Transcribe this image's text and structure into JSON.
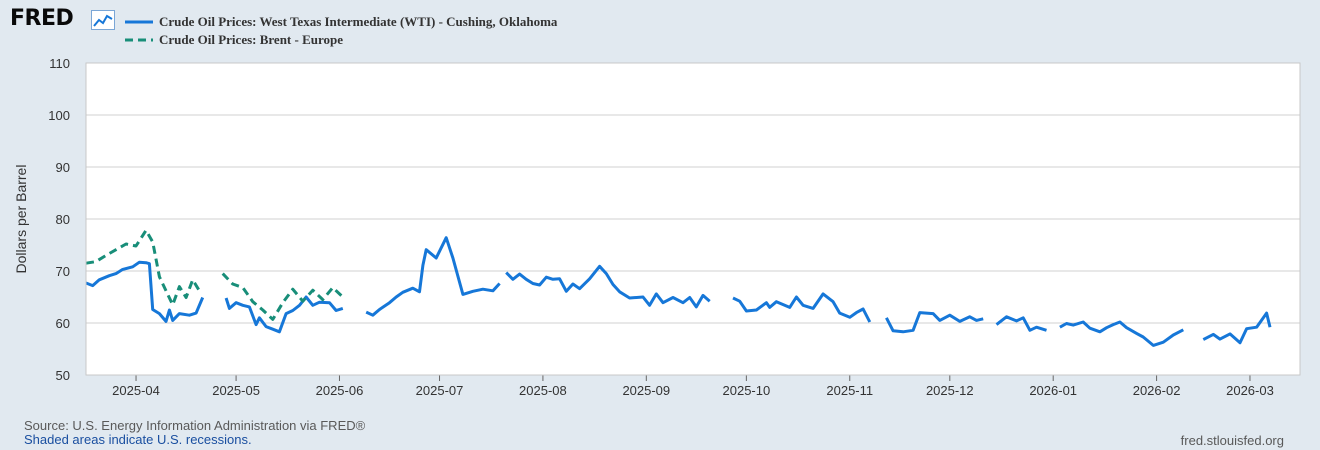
{
  "header": {
    "logo_text": "FRED"
  },
  "legend": [
    {
      "label": "Crude Oil Prices: West Texas Intermediate (WTI) - Cushing, Oklahoma",
      "color": "#1677d8",
      "style": "solid"
    },
    {
      "label": "Crude Oil Prices: Brent - Europe",
      "color": "#188e79",
      "style": "dashed"
    }
  ],
  "footer": {
    "source": "Source: U.S. Energy Information Administration via FRED®",
    "recessions": "Shaded areas indicate U.S. recessions.",
    "site": "fred.stlouisfed.org"
  },
  "chart_data": {
    "type": "line",
    "ylabel": "Dollars per Barrel",
    "ylim": [
      50,
      110
    ],
    "yticks": [
      50,
      60,
      70,
      80,
      90,
      100,
      110
    ],
    "x_range": [
      "2025-03-17",
      "2026-03-16"
    ],
    "xticks": [
      "2025-04",
      "2025-05",
      "2025-06",
      "2025-07",
      "2025-08",
      "2025-09",
      "2025-10",
      "2025-11",
      "2025-12",
      "2026-01",
      "2026-02",
      "2026-03"
    ],
    "grid": "horizontal",
    "series": [
      {
        "name": "Crude Oil Prices: West Texas Intermediate (WTI) - Cushing, Oklahoma",
        "color": "#1677d8",
        "points": [
          [
            "2025-03-17",
            67.7
          ],
          [
            "2025-03-19",
            67.2
          ],
          [
            "2025-03-21",
            68.3
          ],
          [
            "2025-03-24",
            69.1
          ],
          [
            "2025-03-26",
            69.5
          ],
          [
            "2025-03-28",
            70.3
          ],
          [
            "2025-03-31",
            70.8
          ],
          [
            "2025-04-02",
            71.7
          ],
          [
            "2025-04-04",
            71.6
          ],
          [
            "2025-04-05",
            71.4
          ],
          [
            "2025-04-06",
            62.6
          ],
          [
            "2025-04-08",
            61.8
          ],
          [
            "2025-04-10",
            60.3
          ],
          [
            "2025-04-11",
            62.5
          ],
          [
            "2025-04-12",
            60.5
          ],
          [
            "2025-04-14",
            61.8
          ],
          [
            "2025-04-17",
            61.5
          ],
          [
            "2025-04-19",
            61.9
          ],
          [
            "2025-04-21",
            64.9
          ],
          null,
          [
            "2025-04-28",
            64.8
          ],
          [
            "2025-04-29",
            62.8
          ],
          [
            "2025-05-01",
            63.9
          ],
          [
            "2025-05-03",
            63.4
          ],
          [
            "2025-05-05",
            63.1
          ],
          [
            "2025-05-07",
            59.7
          ],
          [
            "2025-05-08",
            61.0
          ],
          [
            "2025-05-10",
            59.3
          ],
          [
            "2025-05-12",
            58.8
          ],
          [
            "2025-05-14",
            58.3
          ],
          [
            "2025-05-16",
            61.8
          ],
          [
            "2025-05-18",
            62.4
          ],
          [
            "2025-05-20",
            63.4
          ],
          [
            "2025-05-22",
            65.0
          ],
          [
            "2025-05-24",
            63.4
          ],
          [
            "2025-05-26",
            64.0
          ],
          [
            "2025-05-29",
            63.9
          ],
          [
            "2025-05-31",
            62.4
          ],
          [
            "2025-06-02",
            62.8
          ],
          null,
          [
            "2025-06-09",
            62.1
          ],
          [
            "2025-06-11",
            61.5
          ],
          [
            "2025-06-13",
            62.6
          ],
          [
            "2025-06-16",
            63.9
          ],
          [
            "2025-06-18",
            65.0
          ],
          [
            "2025-06-20",
            65.9
          ],
          [
            "2025-06-23",
            66.7
          ],
          [
            "2025-06-25",
            66.0
          ],
          [
            "2025-06-26",
            71.1
          ],
          [
            "2025-06-27",
            74.1
          ],
          [
            "2025-06-30",
            72.5
          ],
          [
            "2025-07-03",
            76.4
          ],
          [
            "2025-07-05",
            72.5
          ],
          [
            "2025-07-08",
            65.5
          ],
          [
            "2025-07-11",
            66.1
          ],
          [
            "2025-07-14",
            66.5
          ],
          [
            "2025-07-17",
            66.2
          ],
          [
            "2025-07-19",
            67.6
          ],
          null,
          [
            "2025-07-21",
            69.7
          ],
          [
            "2025-07-23",
            68.4
          ],
          [
            "2025-07-25",
            69.4
          ],
          [
            "2025-07-27",
            68.4
          ],
          [
            "2025-07-29",
            67.6
          ],
          [
            "2025-07-31",
            67.3
          ],
          [
            "2025-08-02",
            68.8
          ],
          [
            "2025-08-04",
            68.4
          ],
          [
            "2025-08-06",
            68.5
          ],
          [
            "2025-08-08",
            66.1
          ],
          [
            "2025-08-10",
            67.5
          ],
          [
            "2025-08-12",
            66.6
          ],
          [
            "2025-08-15",
            68.5
          ],
          [
            "2025-08-18",
            70.9
          ],
          [
            "2025-08-20",
            69.5
          ],
          [
            "2025-08-22",
            67.4
          ],
          [
            "2025-08-24",
            66.0
          ],
          [
            "2025-08-27",
            64.8
          ],
          [
            "2025-08-31",
            65.0
          ],
          [
            "2025-09-02",
            63.4
          ],
          [
            "2025-09-04",
            65.6
          ],
          [
            "2025-09-06",
            63.9
          ],
          [
            "2025-09-09",
            64.9
          ],
          [
            "2025-09-12",
            63.9
          ],
          [
            "2025-09-14",
            64.9
          ],
          [
            "2025-09-16",
            63.1
          ],
          [
            "2025-09-18",
            65.3
          ],
          [
            "2025-09-20",
            64.2
          ],
          null,
          [
            "2025-09-27",
            64.8
          ],
          [
            "2025-09-29",
            64.2
          ],
          [
            "2025-10-01",
            62.3
          ],
          [
            "2025-10-04",
            62.5
          ],
          [
            "2025-10-07",
            63.9
          ],
          [
            "2025-10-08",
            63.0
          ],
          [
            "2025-10-10",
            64.1
          ],
          [
            "2025-10-14",
            63.0
          ],
          [
            "2025-10-16",
            65.0
          ],
          [
            "2025-10-18",
            63.4
          ],
          [
            "2025-10-21",
            62.8
          ],
          [
            "2025-10-24",
            65.6
          ],
          [
            "2025-10-27",
            64.1
          ],
          [
            "2025-10-29",
            61.9
          ],
          [
            "2025-11-01",
            61.1
          ],
          [
            "2025-11-03",
            62.0
          ],
          [
            "2025-11-05",
            62.7
          ],
          [
            "2025-11-07",
            60.2
          ],
          null,
          [
            "2025-11-12",
            61.0
          ],
          [
            "2025-11-14",
            58.5
          ],
          [
            "2025-11-17",
            58.3
          ],
          [
            "2025-11-20",
            58.6
          ],
          [
            "2025-11-22",
            62.0
          ],
          [
            "2025-11-26",
            61.8
          ],
          [
            "2025-11-28",
            60.5
          ],
          [
            "2025-12-01",
            61.5
          ],
          [
            "2025-12-04",
            60.3
          ],
          [
            "2025-12-07",
            61.2
          ],
          [
            "2025-12-09",
            60.5
          ],
          [
            "2025-12-11",
            60.8
          ],
          null,
          [
            "2025-12-15",
            59.7
          ],
          [
            "2025-12-18",
            61.2
          ],
          [
            "2025-12-21",
            60.4
          ],
          [
            "2025-12-23",
            61.0
          ],
          [
            "2025-12-25",
            58.6
          ],
          [
            "2025-12-27",
            59.2
          ],
          [
            "2025-12-30",
            58.6
          ],
          null,
          [
            "2026-01-03",
            59.2
          ],
          [
            "2026-01-05",
            59.9
          ],
          [
            "2026-01-07",
            59.6
          ],
          [
            "2026-01-10",
            60.2
          ],
          [
            "2026-01-12",
            59.0
          ],
          [
            "2026-01-15",
            58.3
          ],
          [
            "2026-01-17",
            59.1
          ],
          [
            "2026-01-19",
            59.7
          ],
          [
            "2026-01-21",
            60.2
          ],
          [
            "2026-01-23",
            59.1
          ],
          [
            "2026-01-26",
            58.0
          ],
          [
            "2026-01-28",
            57.3
          ],
          [
            "2026-01-31",
            55.7
          ],
          [
            "2026-02-03",
            56.3
          ],
          [
            "2026-02-06",
            57.7
          ],
          [
            "2026-02-09",
            58.7
          ],
          null,
          [
            "2026-02-15",
            56.8
          ],
          [
            "2026-02-18",
            57.8
          ],
          [
            "2026-02-20",
            56.9
          ],
          [
            "2026-02-23",
            57.9
          ],
          [
            "2026-02-26",
            56.2
          ],
          [
            "2026-02-28",
            58.9
          ],
          [
            "2026-03-03",
            59.2
          ],
          [
            "2026-03-06",
            61.9
          ],
          [
            "2026-03-07",
            59.2
          ]
        ]
      },
      {
        "name": "Crude Oil Prices: Brent - Europe",
        "color": "#188e79",
        "points": [
          [
            "2025-03-17",
            71.5
          ],
          [
            "2025-03-20",
            71.8
          ],
          [
            "2025-03-23",
            73.0
          ],
          [
            "2025-03-26",
            74.1
          ],
          [
            "2025-03-29",
            75.2
          ],
          [
            "2025-04-01",
            74.8
          ],
          [
            "2025-04-04",
            77.8
          ],
          [
            "2025-04-06",
            75.6
          ],
          [
            "2025-04-08",
            68.9
          ],
          [
            "2025-04-10",
            66.2
          ],
          [
            "2025-04-12",
            63.5
          ],
          [
            "2025-04-14",
            67.0
          ],
          [
            "2025-04-16",
            64.9
          ],
          [
            "2025-04-18",
            68.3
          ],
          [
            "2025-04-20",
            66.2
          ],
          null,
          [
            "2025-04-27",
            69.5
          ],
          [
            "2025-04-30",
            67.5
          ],
          [
            "2025-05-03",
            66.8
          ],
          [
            "2025-05-06",
            64.1
          ],
          [
            "2025-05-09",
            62.5
          ],
          [
            "2025-05-12",
            60.7
          ],
          [
            "2025-05-15",
            63.9
          ],
          [
            "2025-05-18",
            66.5
          ],
          [
            "2025-05-21",
            64.2
          ],
          [
            "2025-05-24",
            66.3
          ],
          [
            "2025-05-27",
            64.5
          ],
          [
            "2025-05-30",
            66.8
          ],
          [
            "2025-06-02",
            65.0
          ]
        ]
      }
    ]
  }
}
